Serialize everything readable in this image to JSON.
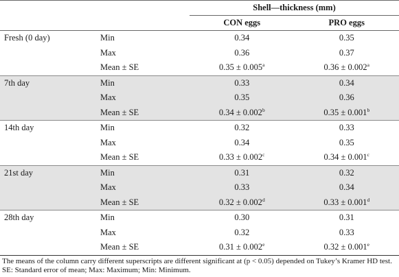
{
  "header": {
    "span_title": "Shell—thickness (mm)",
    "col_con": "CON eggs",
    "col_pro": "PRO eggs"
  },
  "groups": [
    {
      "day": "Fresh (0 day)",
      "rows": [
        {
          "stat": "Min",
          "con": "0.34",
          "con_sup": "",
          "pro": "0.35",
          "pro_sup": ""
        },
        {
          "stat": "Max",
          "con": "0.36",
          "con_sup": "",
          "pro": "0.37",
          "pro_sup": ""
        },
        {
          "stat": "Mean ± SE",
          "con": "0.35 ± 0.005",
          "con_sup": "a",
          "pro": "0.36 ± 0.002",
          "pro_sup": "a"
        }
      ]
    },
    {
      "day": "7th day",
      "rows": [
        {
          "stat": "Min",
          "con": "0.33",
          "con_sup": "",
          "pro": "0.34",
          "pro_sup": ""
        },
        {
          "stat": "Max",
          "con": "0.35",
          "con_sup": "",
          "pro": "0.36",
          "pro_sup": ""
        },
        {
          "stat": "Mean ± SE",
          "con": "0.34 ± 0.002",
          "con_sup": "b",
          "pro": "0.35 ± 0.001",
          "pro_sup": "b"
        }
      ]
    },
    {
      "day": "14th day",
      "rows": [
        {
          "stat": "Min",
          "con": "0.32",
          "con_sup": "",
          "pro": "0.33",
          "pro_sup": ""
        },
        {
          "stat": "Max",
          "con": "0.34",
          "con_sup": "",
          "pro": "0.35",
          "pro_sup": ""
        },
        {
          "stat": "Mean ± SE",
          "con": "0.33 ± 0.002",
          "con_sup": "c",
          "pro": "0.34 ± 0.001",
          "pro_sup": "c"
        }
      ]
    },
    {
      "day": "21st day",
      "rows": [
        {
          "stat": "Min",
          "con": "0.31",
          "con_sup": "",
          "pro": "0.32",
          "pro_sup": ""
        },
        {
          "stat": "Max",
          "con": "0.33",
          "con_sup": "",
          "pro": "0.34",
          "pro_sup": ""
        },
        {
          "stat": "Mean ± SE",
          "con": "0.32 ± 0.002",
          "con_sup": "d",
          "pro": "0.33 ± 0.001",
          "pro_sup": "d"
        }
      ]
    },
    {
      "day": "28th day",
      "rows": [
        {
          "stat": "Min",
          "con": "0.30",
          "con_sup": "",
          "pro": "0.31",
          "pro_sup": ""
        },
        {
          "stat": "Max",
          "con": "0.32",
          "con_sup": "",
          "pro": "0.33",
          "pro_sup": ""
        },
        {
          "stat": "Mean ± SE",
          "con": "0.31 ± 0.002",
          "con_sup": "e",
          "pro": "0.32 ± 0.001",
          "pro_sup": "e"
        }
      ]
    }
  ],
  "footnote": "The means of the column carry different superscripts are different significant at (p < 0.05) depended on Tukey’s Kramer HD test. SE: Standard error of mean; Max: Maximum; Min: Minimum.",
  "colors": {
    "shade": "#e3e3e3",
    "text": "#1a1a1a"
  }
}
